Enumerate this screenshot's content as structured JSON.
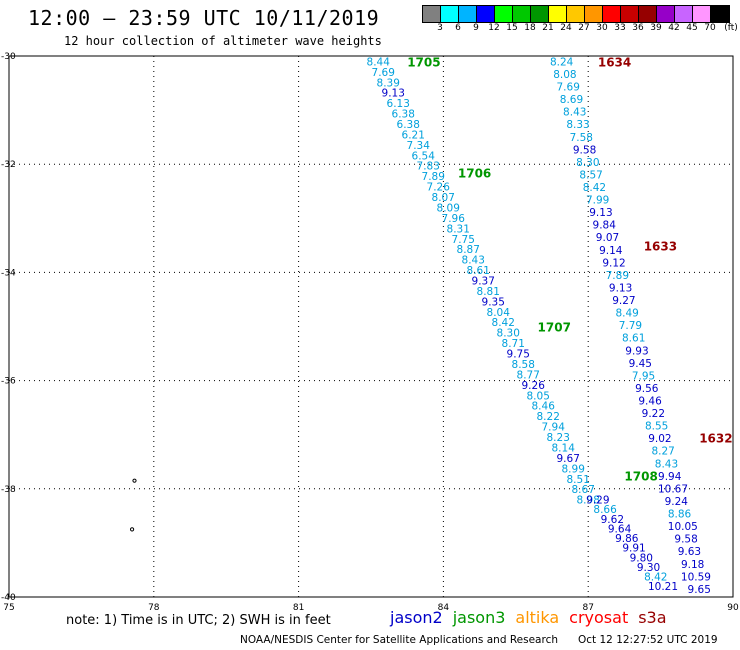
{
  "header": {
    "title": "12:00 — 23:59 UTC 10/11/2019",
    "subtitle": "12 hour collection of altimeter wave heights"
  },
  "legend": {
    "unit": "(ft)",
    "bins": [
      {
        "label": "3",
        "color": "#808080"
      },
      {
        "label": "6",
        "color": "#00ffff"
      },
      {
        "label": "9",
        "color": "#00b4ff"
      },
      {
        "label": "12",
        "color": "#0000ff"
      },
      {
        "label": "15",
        "color": "#00ff00"
      },
      {
        "label": "18",
        "color": "#00c800"
      },
      {
        "label": "21",
        "color": "#009600"
      },
      {
        "label": "24",
        "color": "#ffff00"
      },
      {
        "label": "27",
        "color": "#ffc800"
      },
      {
        "label": "30",
        "color": "#ff9600"
      },
      {
        "label": "33",
        "color": "#ff0000"
      },
      {
        "label": "36",
        "color": "#c80000"
      },
      {
        "label": "39",
        "color": "#960000"
      },
      {
        "label": "42",
        "color": "#9600c8"
      },
      {
        "label": "45",
        "color": "#c864ff"
      },
      {
        "label": "70",
        "color": "#ff96ff"
      },
      {
        "label": "",
        "color": "#000000"
      }
    ]
  },
  "axes": {
    "lon_min": 75,
    "lon_max": 90,
    "lat_min": -40,
    "lat_max": -30,
    "x_ticks": [
      "75",
      "78",
      "81",
      "84",
      "87",
      "90"
    ],
    "y_ticks": [
      "-30",
      "-32",
      "-34",
      "-36",
      "-38",
      "-40"
    ]
  },
  "palette": {
    "jason2": "#0000c8",
    "jason3": "#009600",
    "sky": "#00a0dc",
    "cryosat": "#960000",
    "altika": "#ff9600",
    "s3a": "#ff0000"
  },
  "tracks": [
    {
      "label": "1705",
      "label_color": "jason3",
      "label_lon": 83.25,
      "label_lat": -30.1,
      "start": [
        82.65,
        -30.1
      ],
      "end": [
        87.0,
        -38.2
      ],
      "values": [
        "8.44",
        "7.69",
        "8.39",
        "9.13",
        "6.13",
        "6.38",
        "6.38",
        "6.21",
        "7.34",
        "6.54",
        "7.83",
        "7.89",
        "7.26",
        "8.07",
        "8.09",
        "7.96",
        "8.31",
        "7.75",
        "8.87",
        "8.43",
        "8.61",
        "9.37",
        "8.81",
        "9.35",
        "8.04",
        "8.42",
        "8.30",
        "8.71",
        "9.75",
        "8.58",
        "8.77",
        "9.26",
        "8.05",
        "8.46",
        "8.22",
        "7.94",
        "8.23",
        "8.14",
        "9.67",
        "8.99",
        "8.51",
        "8.67",
        "8.98"
      ],
      "colors": [
        "sky",
        "sky",
        "sky",
        "jason2",
        "sky",
        "sky",
        "sky",
        "sky",
        "sky",
        "sky",
        "sky",
        "sky",
        "sky",
        "sky",
        "sky",
        "sky",
        "sky",
        "sky",
        "sky",
        "sky",
        "sky",
        "jason2",
        "sky",
        "jason2",
        "sky",
        "sky",
        "sky",
        "sky",
        "jason2",
        "sky",
        "sky",
        "jason2",
        "sky",
        "sky",
        "sky",
        "sky",
        "sky",
        "sky",
        "jason2",
        "sky",
        "sky",
        "sky",
        "sky"
      ]
    },
    {
      "label": "1706",
      "label_color": "jason3",
      "label_lon": 84.3,
      "label_lat": -32.15
    },
    {
      "label": "1707",
      "label_color": "jason3",
      "label_lon": 85.95,
      "label_lat": -35.0
    },
    {
      "label": "1708",
      "label_color": "jason3",
      "label_lon": 87.75,
      "label_lat": -37.75
    },
    {
      "label": "",
      "label_color": "jason3",
      "start": [
        87.2,
        -38.2
      ],
      "end": [
        88.55,
        -39.8
      ],
      "values": [
        "9.29",
        "8.66",
        "9.62",
        "9.64",
        "9.86",
        "9.91",
        "9.80",
        "9.30",
        "8.42",
        "10.21"
      ],
      "colors": [
        "jason2",
        "sky",
        "jason2",
        "jason2",
        "jason2",
        "jason2",
        "jason2",
        "jason2",
        "sky",
        "jason2"
      ]
    },
    {
      "label": "1634",
      "label_color": "cryosat",
      "label_lon": 87.2,
      "label_lat": -30.1,
      "start": [
        86.45,
        -30.1
      ],
      "end": [
        89.3,
        -39.85
      ],
      "values": [
        "8.24",
        "8.08",
        "7.69",
        "8.69",
        "8.43",
        "8.33",
        "7.58",
        "9.58",
        "8.30",
        "8.57",
        "8.42",
        "7.99",
        "9.13",
        "9.84",
        "9.07",
        "9.14",
        "9.12",
        "7.89",
        "9.13",
        "9.27",
        "8.49",
        "7.79",
        "8.61",
        "9.93",
        "9.45",
        "7.95",
        "9.56",
        "9.46",
        "9.22",
        "8.55",
        "9.02",
        "8.27",
        "8.43",
        "9.94",
        "10.67",
        "9.24",
        "8.86",
        "10.05",
        "9.58",
        "9.63",
        "9.18",
        "10.59",
        "9.65"
      ],
      "colors": [
        "sky",
        "sky",
        "sky",
        "sky",
        "sky",
        "sky",
        "sky",
        "jason2",
        "sky",
        "sky",
        "sky",
        "sky",
        "jason2",
        "jason2",
        "jason2",
        "jason2",
        "jason2",
        "sky",
        "jason2",
        "jason2",
        "sky",
        "sky",
        "sky",
        "jason2",
        "jason2",
        "sky",
        "jason2",
        "jason2",
        "jason2",
        "sky",
        "jason2",
        "sky",
        "sky",
        "jason2",
        "jason2",
        "jason2",
        "sky",
        "jason2",
        "jason2",
        "jason2",
        "jason2",
        "jason2",
        "jason2"
      ]
    },
    {
      "label": "1633",
      "label_color": "cryosat",
      "label_lon": 88.15,
      "label_lat": -33.5
    },
    {
      "label": "1632",
      "label_color": "cryosat",
      "label_lon": 89.3,
      "label_lat": -37.05
    }
  ],
  "islands": [
    [
      77.6,
      -37.85
    ],
    [
      77.55,
      -38.75
    ]
  ],
  "footer": {
    "note": "note: 1) Time is in UTC; 2) SWH is in feet",
    "satellites": [
      {
        "name": "jason2",
        "color": "jason2"
      },
      {
        "name": "jason3",
        "color": "jason3"
      },
      {
        "name": "altika",
        "color": "altika"
      },
      {
        "name": "cryosat",
        "color": "s3a"
      },
      {
        "name": "s3a",
        "color": "cryosat"
      }
    ],
    "credit": "NOAA/NESDIS Center for Satellite Applications and Research",
    "timestamp": "Oct 12 12:27:52 UTC 2019"
  }
}
